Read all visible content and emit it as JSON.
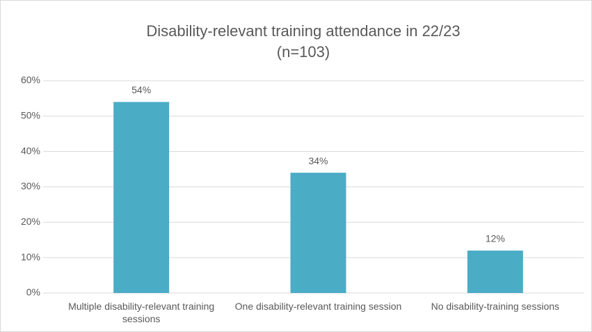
{
  "chart_data": {
    "type": "bar",
    "title": "Disability-relevant training attendance in 22/23",
    "subtitle": "(n=103)",
    "categories": [
      "Multiple disability-relevant training sessions",
      "One disability-relevant training session",
      "No disability-training sessions"
    ],
    "values": [
      54,
      34,
      12
    ],
    "value_labels": [
      "54%",
      "34%",
      "12%"
    ],
    "color": "#4bacc6",
    "ylim": [
      0,
      60
    ],
    "yticks": [
      {
        "value": 0,
        "label": "0%"
      },
      {
        "value": 10,
        "label": "10%"
      },
      {
        "value": 20,
        "label": "20%"
      },
      {
        "value": 30,
        "label": "30%"
      },
      {
        "value": 40,
        "label": "40%"
      },
      {
        "value": 50,
        "label": "50%"
      },
      {
        "value": 60,
        "label": "60%"
      }
    ],
    "grid": true
  }
}
